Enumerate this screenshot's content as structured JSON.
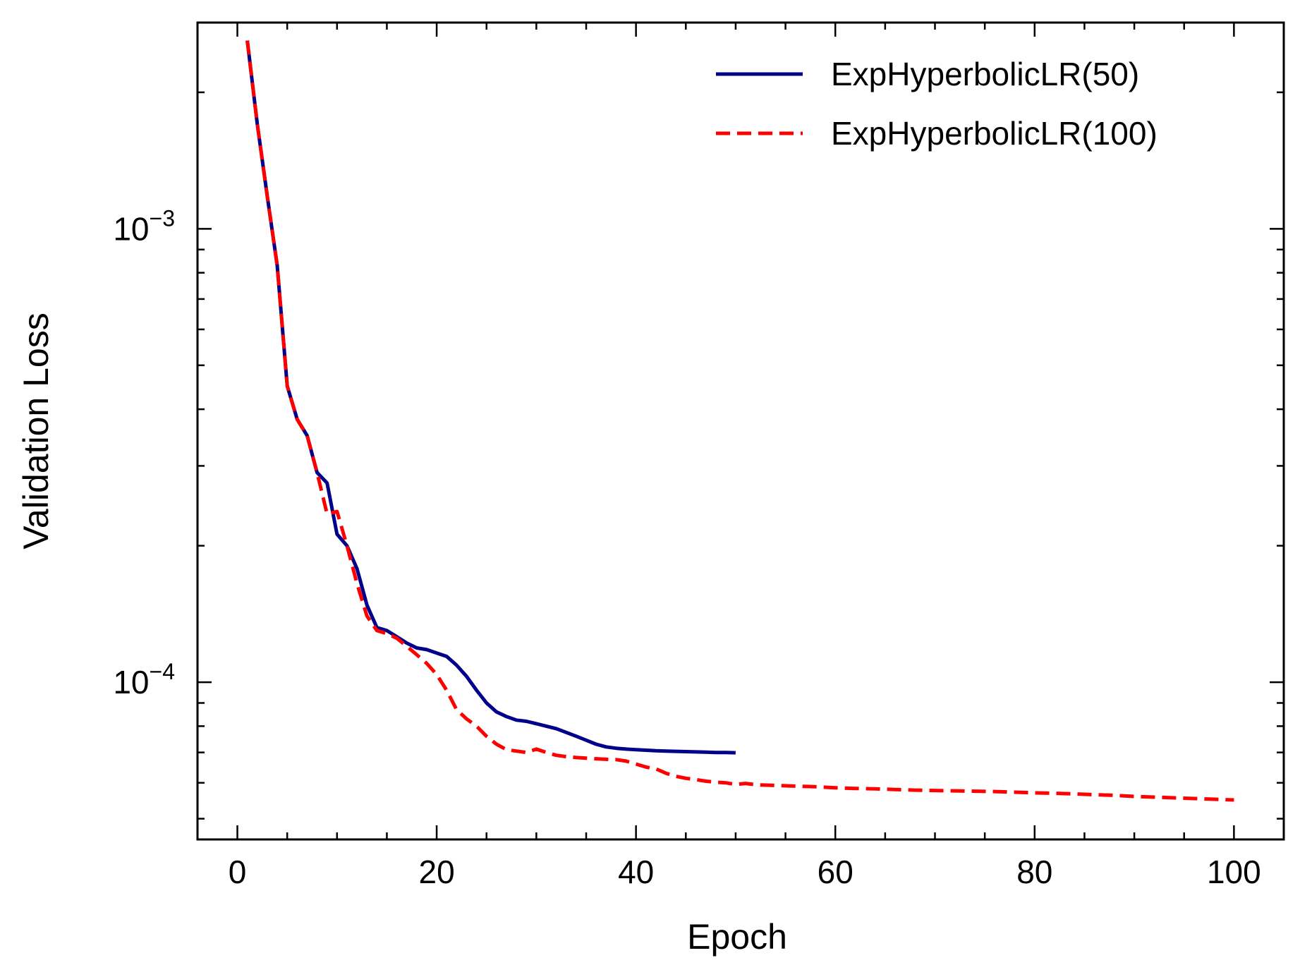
{
  "chart_data": {
    "type": "line",
    "title": "",
    "xlabel": "Epoch",
    "ylabel": "Validation Loss",
    "xlim": [
      -4,
      105
    ],
    "ylim": [
      4.5e-05,
      0.00285
    ],
    "yscale": "log",
    "grid": false,
    "legend_position": "top-right",
    "x_ticks": [
      0,
      20,
      40,
      60,
      80,
      100
    ],
    "y_ticks": [
      {
        "value": 0.001,
        "base": "10",
        "exp": "−3"
      },
      {
        "value": 0.0001,
        "base": "10",
        "exp": "−4"
      }
    ],
    "series": [
      {
        "name": "ExpHyperbolicLR(50)",
        "color": "#00008b",
        "style": "solid",
        "points": [
          [
            1,
            0.0026
          ],
          [
            2,
            0.0017
          ],
          [
            3,
            0.00118
          ],
          [
            4,
            0.00083
          ],
          [
            5,
            0.00045
          ],
          [
            6,
            0.00038
          ],
          [
            7,
            0.00035
          ],
          [
            8,
            0.00029
          ],
          [
            9,
            0.000275
          ],
          [
            10,
            0.000212
          ],
          [
            11,
            0.0002
          ],
          [
            12,
            0.000178
          ],
          [
            13,
            0.000148
          ],
          [
            14,
            0.000132
          ],
          [
            15,
            0.00013
          ],
          [
            16,
            0.000126
          ],
          [
            17,
            0.000122
          ],
          [
            18,
            0.000119
          ],
          [
            19,
            0.000118
          ],
          [
            20,
            0.000116
          ],
          [
            21,
            0.000114
          ],
          [
            22,
            0.000109
          ],
          [
            23,
            0.000103
          ],
          [
            24,
            9.6e-05
          ],
          [
            25,
            9e-05
          ],
          [
            26,
            8.6e-05
          ],
          [
            27,
            8.4e-05
          ],
          [
            28,
            8.25e-05
          ],
          [
            29,
            8.2e-05
          ],
          [
            30,
            8.1e-05
          ],
          [
            31,
            8e-05
          ],
          [
            32,
            7.9e-05
          ],
          [
            33,
            7.75e-05
          ],
          [
            34,
            7.6e-05
          ],
          [
            35,
            7.45e-05
          ],
          [
            36,
            7.3e-05
          ],
          [
            37,
            7.2e-05
          ],
          [
            38,
            7.15e-05
          ],
          [
            39,
            7.12e-05
          ],
          [
            40,
            7.1e-05
          ],
          [
            41,
            7.08e-05
          ],
          [
            42,
            7.06e-05
          ],
          [
            43,
            7.05e-05
          ],
          [
            44,
            7.04e-05
          ],
          [
            45,
            7.03e-05
          ],
          [
            46,
            7.02e-05
          ],
          [
            47,
            7.01e-05
          ],
          [
            48,
            7e-05
          ],
          [
            49,
            7e-05
          ],
          [
            50,
            6.99e-05
          ]
        ]
      },
      {
        "name": "ExpHyperbolicLR(100)",
        "color": "#ff0000",
        "style": "dashed",
        "points": [
          [
            1,
            0.0026
          ],
          [
            2,
            0.0017
          ],
          [
            3,
            0.00118
          ],
          [
            4,
            0.00083
          ],
          [
            5,
            0.00045
          ],
          [
            6,
            0.00038
          ],
          [
            7,
            0.00035
          ],
          [
            8,
            0.00029
          ],
          [
            9,
            0.000235
          ],
          [
            10,
            0.000238
          ],
          [
            11,
            0.0002
          ],
          [
            12,
            0.000165
          ],
          [
            13,
            0.00014
          ],
          [
            14,
            0.00013
          ],
          [
            15,
            0.000128
          ],
          [
            16,
            0.000125
          ],
          [
            17,
            0.00012
          ],
          [
            18,
            0.000115
          ],
          [
            19,
            0.00011
          ],
          [
            20,
            0.000104
          ],
          [
            21,
            9.6e-05
          ],
          [
            22,
            8.7e-05
          ],
          [
            23,
            8.3e-05
          ],
          [
            24,
            8e-05
          ],
          [
            25,
            7.6e-05
          ],
          [
            26,
            7.3e-05
          ],
          [
            27,
            7.1e-05
          ],
          [
            28,
            7.05e-05
          ],
          [
            29,
            7e-05
          ],
          [
            30,
            7.12e-05
          ],
          [
            31,
            7e-05
          ],
          [
            32,
            6.9e-05
          ],
          [
            33,
            6.85e-05
          ],
          [
            34,
            6.82e-05
          ],
          [
            35,
            6.8e-05
          ],
          [
            36,
            6.78e-05
          ],
          [
            37,
            6.76e-05
          ],
          [
            38,
            6.75e-05
          ],
          [
            39,
            6.7e-05
          ],
          [
            40,
            6.6e-05
          ],
          [
            41,
            6.5e-05
          ],
          [
            42,
            6.44e-05
          ],
          [
            43,
            6.3e-05
          ],
          [
            44,
            6.2e-05
          ],
          [
            45,
            6.14e-05
          ],
          [
            46,
            6.1e-05
          ],
          [
            47,
            6.05e-05
          ],
          [
            48,
            6.02e-05
          ],
          [
            49,
            6e-05
          ],
          [
            50,
            5.95e-05
          ],
          [
            51,
            5.98e-05
          ],
          [
            52,
            5.94e-05
          ],
          [
            54,
            5.92e-05
          ],
          [
            56,
            5.9e-05
          ],
          [
            58,
            5.88e-05
          ],
          [
            60,
            5.85e-05
          ],
          [
            62,
            5.83e-05
          ],
          [
            64,
            5.82e-05
          ],
          [
            66,
            5.8e-05
          ],
          [
            68,
            5.78e-05
          ],
          [
            70,
            5.77e-05
          ],
          [
            72,
            5.76e-05
          ],
          [
            74,
            5.75e-05
          ],
          [
            76,
            5.74e-05
          ],
          [
            78,
            5.72e-05
          ],
          [
            80,
            5.7e-05
          ],
          [
            82,
            5.69e-05
          ],
          [
            84,
            5.67e-05
          ],
          [
            86,
            5.65e-05
          ],
          [
            88,
            5.63e-05
          ],
          [
            90,
            5.6e-05
          ],
          [
            92,
            5.58e-05
          ],
          [
            94,
            5.56e-05
          ],
          [
            96,
            5.54e-05
          ],
          [
            98,
            5.52e-05
          ],
          [
            100,
            5.5e-05
          ]
        ]
      }
    ]
  }
}
